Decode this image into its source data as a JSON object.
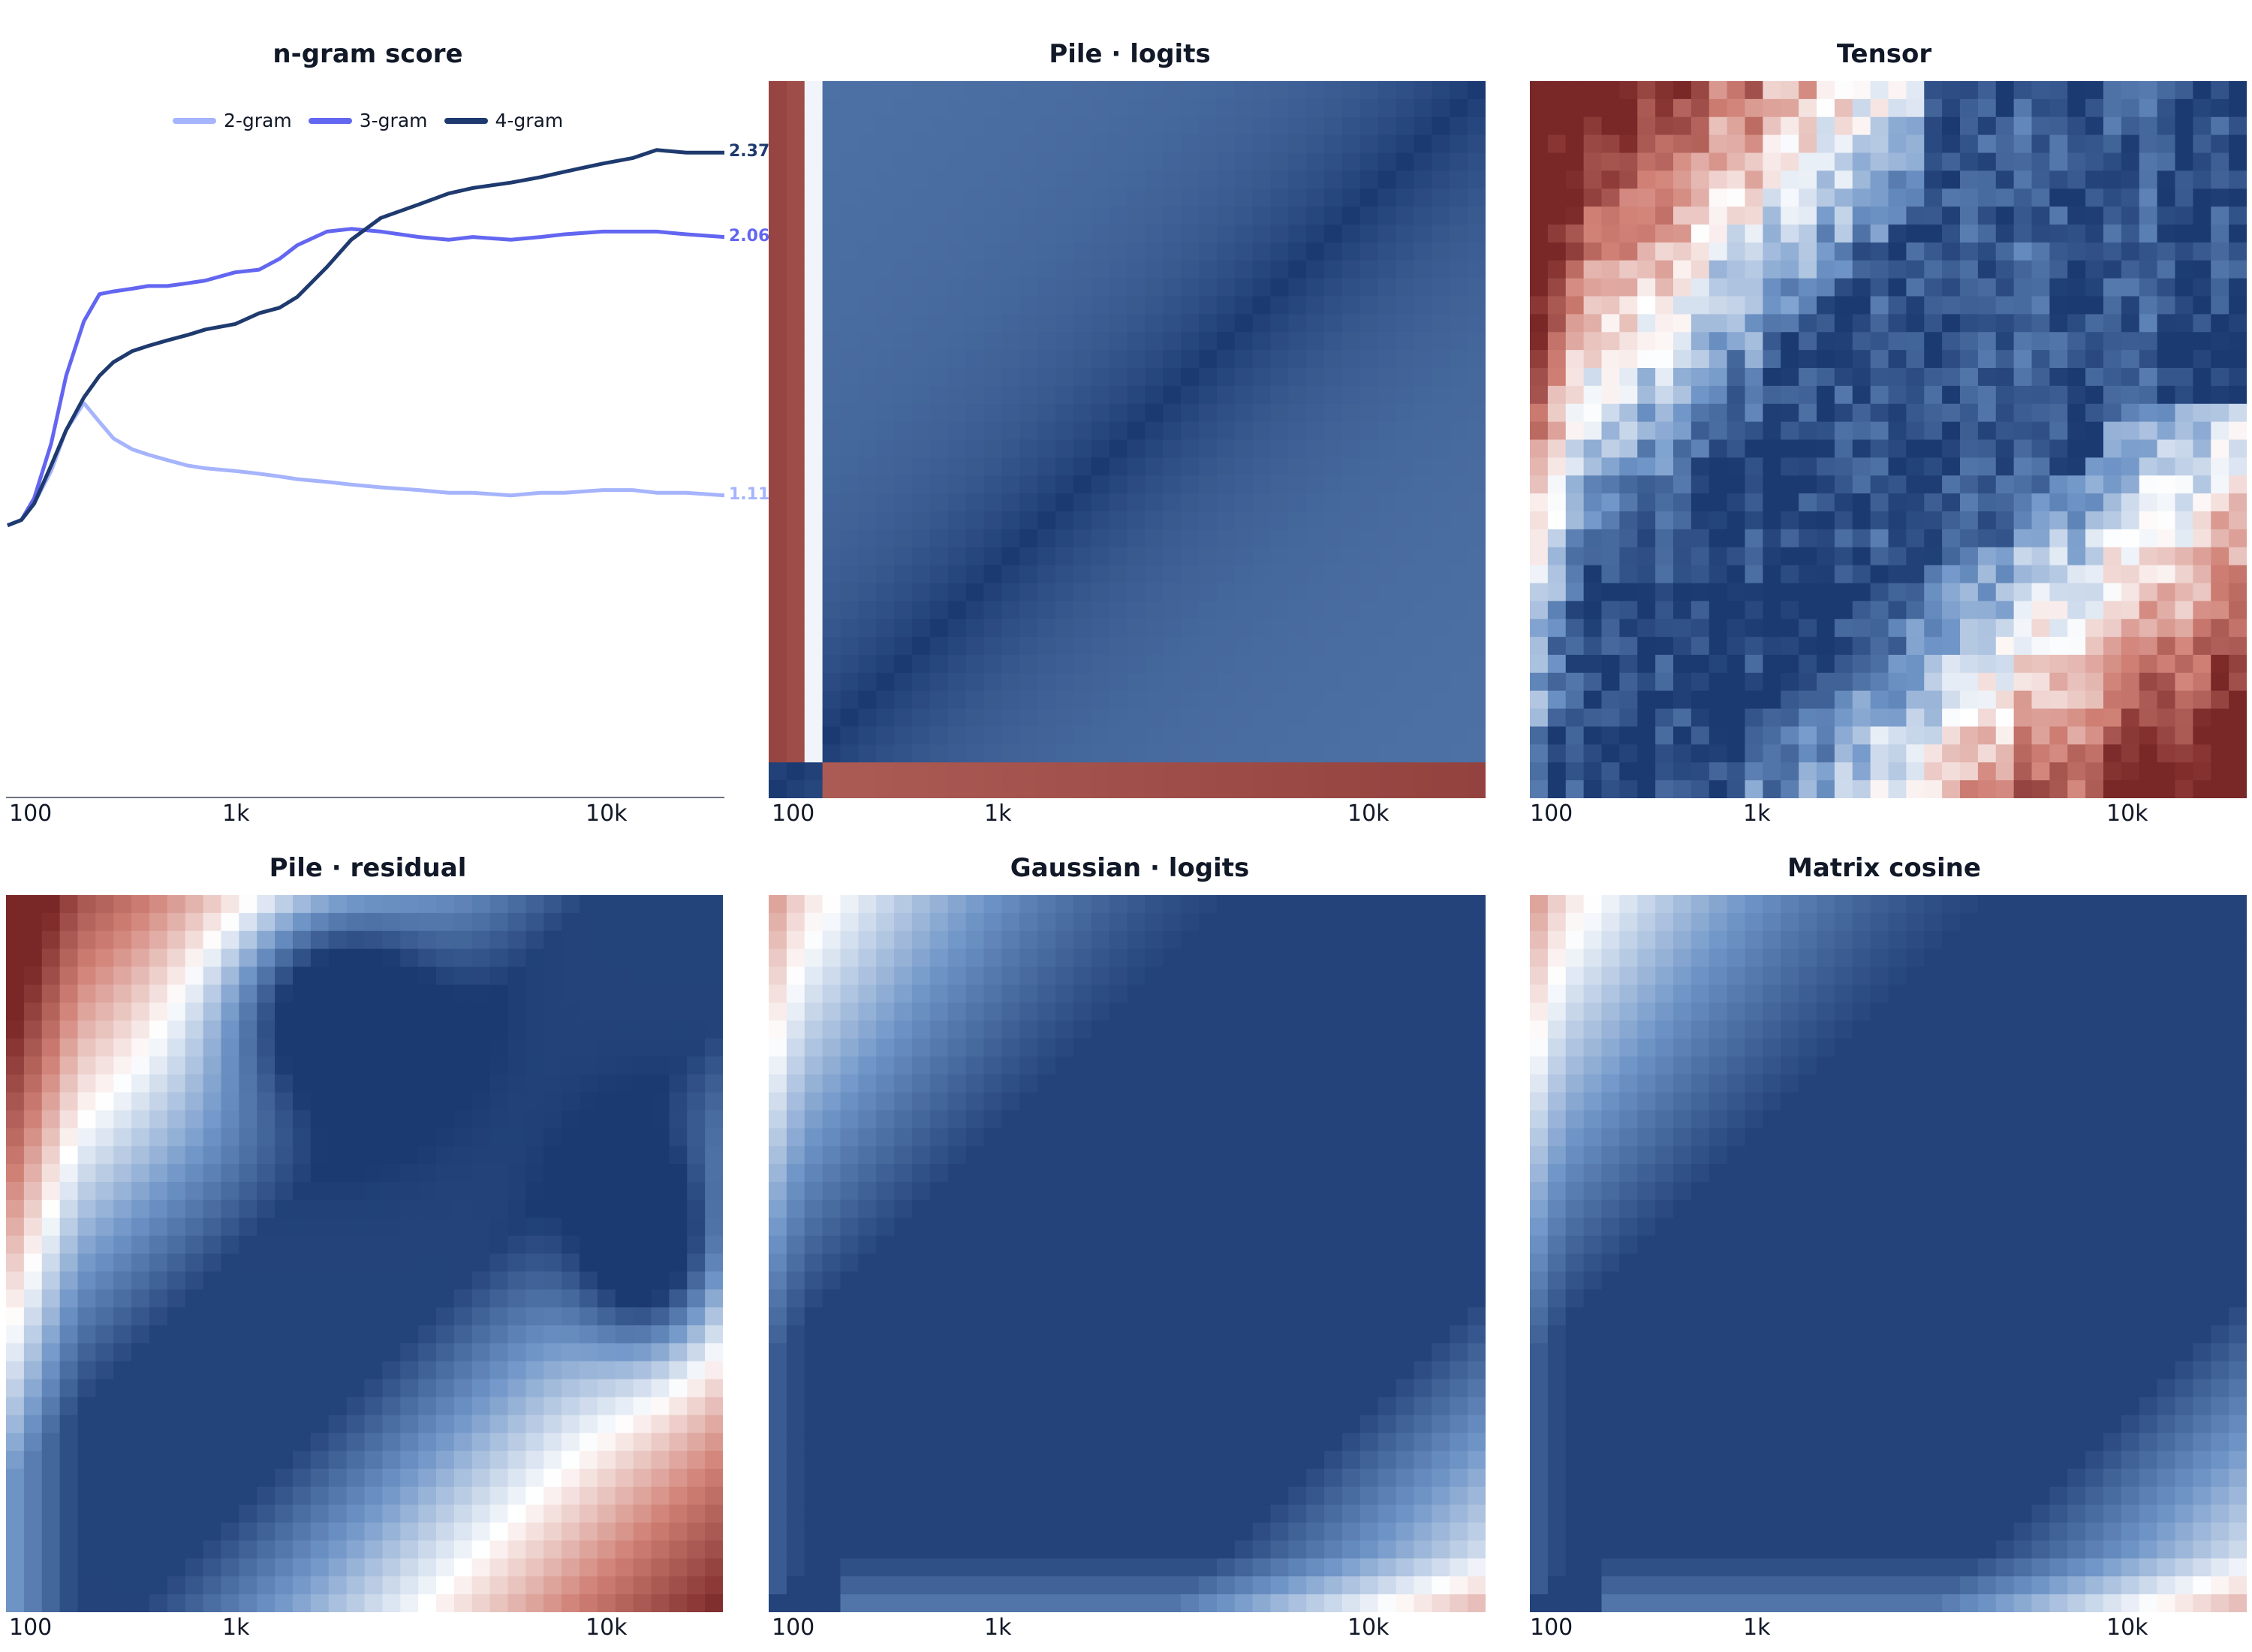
{
  "chart_data": [
    {
      "type": "line",
      "title": "n-gram score",
      "xscale": "log",
      "xlim": [
        90,
        20000
      ],
      "ylim": [
        0.0,
        2.6
      ],
      "x_ticks": [
        "100",
        "1k",
        "10k"
      ],
      "legend_position": "top-left",
      "grid": false,
      "series": [
        {
          "name": "2-gram",
          "color": "#a5b4fc",
          "end_label": "1.11",
          "x": [
            90,
            100,
            110,
            125,
            140,
            160,
            180,
            200,
            230,
            260,
            300,
            350,
            400,
            500,
            600,
            700,
            800,
            1000,
            1200,
            1500,
            2000,
            2500,
            3000,
            4000,
            5000,
            6000,
            8000,
            10000,
            12000,
            15000,
            20000
          ],
          "y": [
            1.0,
            1.02,
            1.08,
            1.2,
            1.35,
            1.45,
            1.38,
            1.32,
            1.28,
            1.26,
            1.24,
            1.22,
            1.21,
            1.2,
            1.19,
            1.18,
            1.17,
            1.16,
            1.15,
            1.14,
            1.13,
            1.12,
            1.12,
            1.11,
            1.12,
            1.12,
            1.13,
            1.13,
            1.12,
            1.12,
            1.11
          ]
        },
        {
          "name": "3-gram",
          "color": "#6366f1",
          "end_label": "2.06",
          "x": [
            90,
            100,
            110,
            125,
            140,
            160,
            180,
            200,
            230,
            260,
            300,
            350,
            400,
            500,
            600,
            700,
            800,
            1000,
            1200,
            1500,
            2000,
            2500,
            3000,
            4000,
            5000,
            6000,
            8000,
            10000,
            12000,
            15000,
            20000
          ],
          "y": [
            1.0,
            1.02,
            1.1,
            1.3,
            1.55,
            1.75,
            1.85,
            1.86,
            1.87,
            1.88,
            1.88,
            1.89,
            1.9,
            1.93,
            1.94,
            1.98,
            2.03,
            2.08,
            2.09,
            2.08,
            2.06,
            2.05,
            2.06,
            2.05,
            2.06,
            2.07,
            2.08,
            2.08,
            2.08,
            2.07,
            2.06
          ]
        },
        {
          "name": "4-gram",
          "color": "#1e3a6e",
          "end_label": "2.37",
          "x": [
            90,
            100,
            110,
            125,
            140,
            160,
            180,
            200,
            230,
            260,
            300,
            350,
            400,
            500,
            600,
            700,
            800,
            1000,
            1200,
            1500,
            2000,
            2500,
            3000,
            4000,
            5000,
            6000,
            8000,
            10000,
            12000,
            15000,
            20000
          ],
          "y": [
            1.0,
            1.02,
            1.08,
            1.22,
            1.35,
            1.47,
            1.55,
            1.6,
            1.64,
            1.66,
            1.68,
            1.7,
            1.72,
            1.74,
            1.78,
            1.8,
            1.84,
            1.95,
            2.05,
            2.13,
            2.18,
            2.22,
            2.24,
            2.26,
            2.28,
            2.3,
            2.33,
            2.35,
            2.38,
            2.37,
            2.37
          ]
        }
      ]
    },
    {
      "type": "heatmap",
      "title": "Pile · logits",
      "variant": "logits_bar",
      "x_ticks": [
        "100",
        "1k",
        "10k"
      ],
      "colormap": [
        "#7a2727",
        "#d08075",
        "#ffffff",
        "#7096c8",
        "#1b3a72"
      ]
    },
    {
      "type": "heatmap",
      "title": "Tensor",
      "variant": "blocky",
      "x_ticks": [
        "100",
        "1k",
        "10k"
      ],
      "colormap": [
        "#7a2727",
        "#d08075",
        "#ffffff",
        "#7096c8",
        "#1b3a72"
      ]
    },
    {
      "type": "heatmap",
      "title": "Pile · residual",
      "variant": "smooth_blob",
      "x_ticks": [
        "100",
        "1k",
        "10k"
      ],
      "colormap": [
        "#7a2727",
        "#d08075",
        "#ffffff",
        "#7096c8",
        "#1b3a72"
      ]
    },
    {
      "type": "heatmap",
      "title": "Gaussian · logits",
      "variant": "smooth",
      "x_ticks": [
        "100",
        "1k",
        "10k"
      ],
      "colormap": [
        "#7a2727",
        "#d08075",
        "#ffffff",
        "#7096c8",
        "#1b3a72"
      ]
    },
    {
      "type": "heatmap",
      "title": "Matrix cosine",
      "variant": "smooth_sharp",
      "x_ticks": [
        "100",
        "1k",
        "10k"
      ],
      "colormap": [
        "#7a2727",
        "#d08075",
        "#ffffff",
        "#7096c8",
        "#1b3a72"
      ]
    }
  ]
}
